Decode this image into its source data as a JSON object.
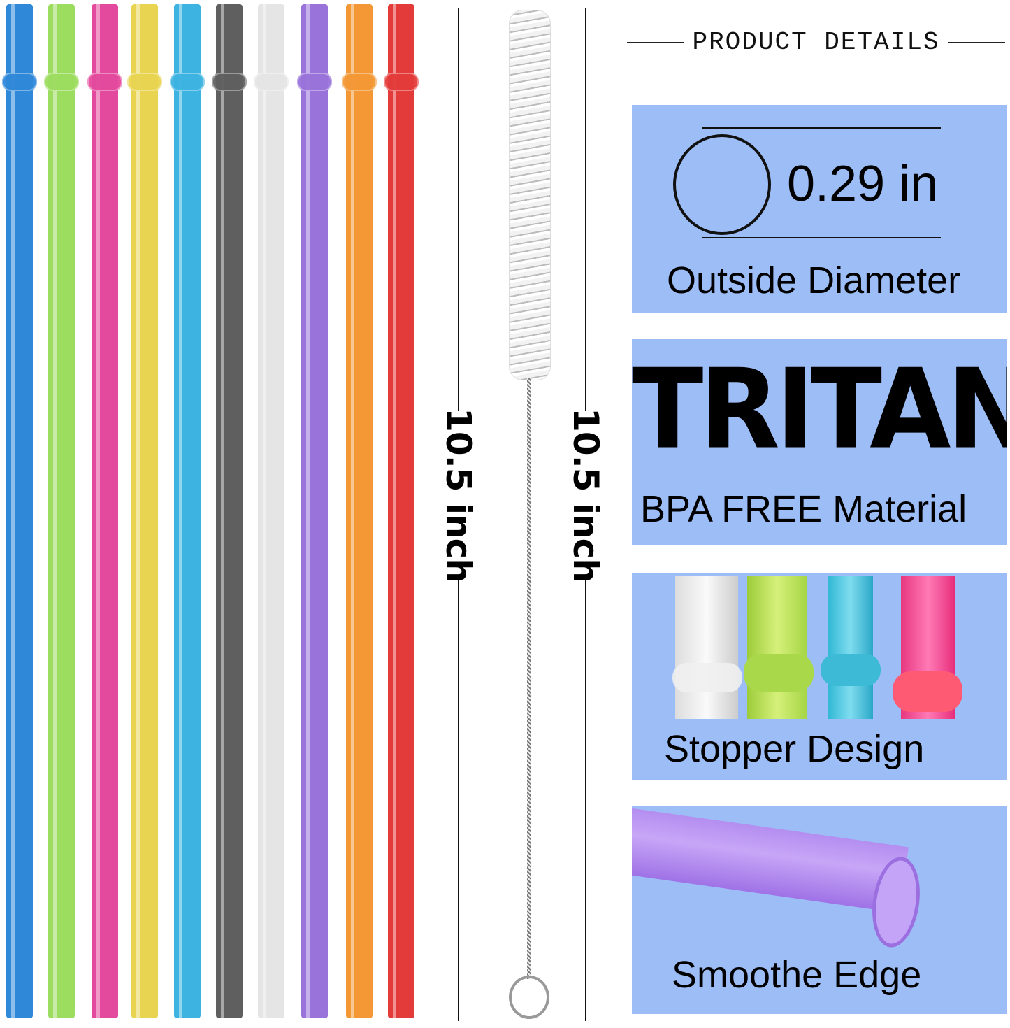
{
  "straws": {
    "colors": [
      "#1478d4",
      "#8fd84a",
      "#e0318f",
      "#e6cf3a",
      "#23a9dd",
      "#4a4a4a",
      "#e2e2e2",
      "#8b5fd6",
      "#f28a1a",
      "#e0201e"
    ]
  },
  "measurements": {
    "straw_length": "10.5 inch",
    "brush_length": "10.5 inch"
  },
  "details": {
    "header": "PRODUCT DETAILS",
    "diameter_value": "0.29 in",
    "diameter_label": "Outside Diameter",
    "material_title": "TRITAN",
    "material_label": "BPA FREE Material",
    "stopper_label": "Stopper Design",
    "edge_label": "Smoothe Edge"
  },
  "colors": {
    "panel": "#9dbdf6",
    "text": "#000000"
  }
}
